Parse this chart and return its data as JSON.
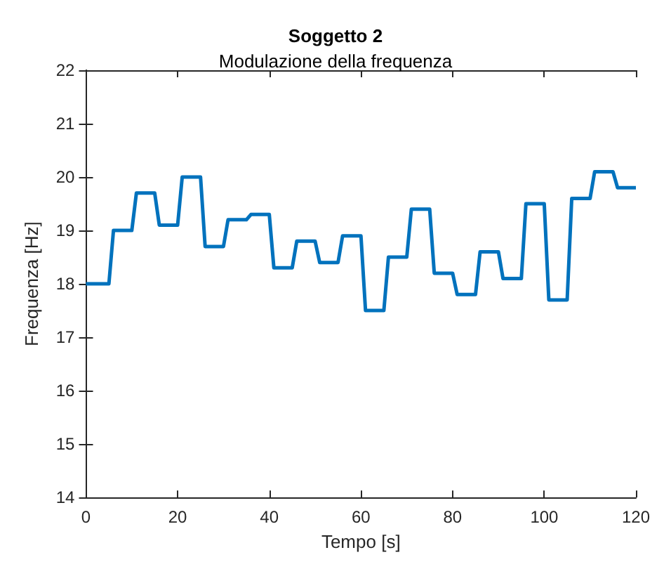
{
  "chart_data": {
    "type": "line",
    "title": "Soggetto 2",
    "subtitle": "Modulazione della frequenza",
    "xlabel": "Tempo [s]",
    "ylabel": "Frequenza [Hz]",
    "x": [
      0,
      5,
      6,
      10,
      11,
      15,
      16,
      20,
      21,
      25,
      26,
      30,
      31,
      35,
      36,
      40,
      41,
      45,
      46,
      50,
      51,
      55,
      56,
      60,
      61,
      65,
      66,
      70,
      71,
      75,
      76,
      80,
      81,
      85,
      86,
      90,
      91,
      95,
      96,
      100,
      101,
      105,
      106,
      110,
      111,
      115,
      116,
      120
    ],
    "series": [
      {
        "color": "#0072bd",
        "values": [
          18,
          18,
          19,
          19,
          19.7,
          19.7,
          19.1,
          19.1,
          20,
          20,
          18.7,
          18.7,
          19.2,
          19.2,
          19.3,
          19.3,
          18.3,
          18.3,
          18.8,
          18.8,
          18.4,
          18.4,
          18.9,
          18.9,
          17.5,
          17.5,
          18.5,
          18.5,
          19.4,
          19.4,
          18.2,
          18.2,
          17.8,
          17.8,
          18.6,
          18.6,
          18.1,
          18.1,
          19.5,
          19.5,
          17.7,
          17.7,
          19.6,
          19.6,
          20.1,
          20.1,
          19.8,
          19.8
        ]
      }
    ],
    "xlim": [
      0,
      120
    ],
    "xticks": [
      0,
      20,
      40,
      60,
      80,
      100,
      120
    ],
    "ylim": [
      14,
      22
    ],
    "yticks": [
      14,
      15,
      16,
      17,
      18,
      19,
      20,
      21,
      22
    ],
    "grid": false,
    "marker": "none",
    "line_style": "solid"
  }
}
